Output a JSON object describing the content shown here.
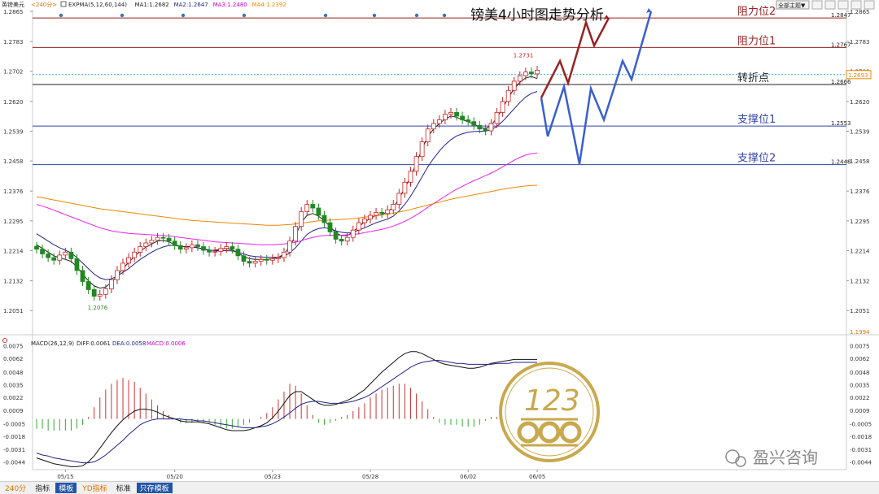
{
  "header": {
    "symbol": "英镑美元",
    "period": "<240分>",
    "indicators": [
      {
        "label": "EXPMA(5,12,60,144)",
        "color": "#222222"
      },
      {
        "label": "MA1:1.2682",
        "color": "#222222"
      },
      {
        "label": "MA2:1.2647",
        "color": "#222288"
      },
      {
        "label": "MA3:1.2480",
        "color": "#cc00cc"
      },
      {
        "label": "MA4:1.2392",
        "color": "#ee8800"
      }
    ],
    "theme_button": "全部主题▼"
  },
  "chart_title": "镑美4小时图走势分析",
  "chart_data": [
    {
      "type": "candlestick",
      "ylim": [
        1.1994,
        1.2865
      ],
      "yticks": [
        "1.2865",
        "1.2783",
        "1.2702",
        "1.2620",
        "1.2539",
        "1.2458",
        "1.2376",
        "1.2295",
        "1.2214",
        "1.2132",
        "1.2051"
      ],
      "y_min_label": "1.1994",
      "x_tick_labels": [
        "05/15",
        "05/20",
        "05/23",
        "05/28",
        "06/02",
        "06/05"
      ],
      "candles_close": [
        1.2218,
        1.2205,
        1.2195,
        1.2188,
        1.2202,
        1.221,
        1.2192,
        1.216,
        1.213,
        1.2108,
        1.209,
        1.2095,
        1.211,
        1.2135,
        1.216,
        1.218,
        1.2195,
        1.221,
        1.2225,
        1.2235,
        1.2242,
        1.225,
        1.2248,
        1.224,
        1.2228,
        1.2218,
        1.2222,
        1.223,
        1.2225,
        1.2215,
        1.221,
        1.2212,
        1.222,
        1.2225,
        1.2218,
        1.22,
        1.2185,
        1.218,
        1.2185,
        1.219,
        1.2188,
        1.2192,
        1.2195,
        1.221,
        1.224,
        1.228,
        1.232,
        1.234,
        1.233,
        1.231,
        1.229,
        1.2265,
        1.2245,
        1.224,
        1.225,
        1.227,
        1.229,
        1.23,
        1.231,
        1.2318,
        1.2315,
        1.2325,
        1.234,
        1.237,
        1.24,
        1.243,
        1.247,
        1.251,
        1.2545,
        1.256,
        1.257,
        1.2585,
        1.259,
        1.258,
        1.257,
        1.2565,
        1.2555,
        1.2545,
        1.254,
        1.256,
        1.259,
        1.262,
        1.265,
        1.2675,
        1.269,
        1.27,
        1.2695,
        1.2705
      ],
      "ema_lines": [
        {
          "name": "MA1",
          "color": "#222222",
          "values": [
            1.223,
            1.222,
            1.221,
            1.22,
            1.2195,
            1.219,
            1.2185,
            1.217,
            1.215,
            1.2132,
            1.2118,
            1.2112,
            1.2115,
            1.2128,
            1.2145,
            1.2165,
            1.2182,
            1.2198,
            1.2212,
            1.2224,
            1.2232,
            1.224,
            1.2242,
            1.2238,
            1.223,
            1.2225,
            1.2225,
            1.2225,
            1.2222,
            1.2218,
            1.2215,
            1.2215,
            1.2218,
            1.222,
            1.2216,
            1.2208,
            1.2198,
            1.2192,
            1.219,
            1.219,
            1.219,
            1.2192,
            1.2195,
            1.2205,
            1.2225,
            1.2255,
            1.229,
            1.231,
            1.2315,
            1.2308,
            1.2295,
            1.228,
            1.2262,
            1.2255,
            1.2255,
            1.2265,
            1.228,
            1.2292,
            1.2302,
            1.231,
            1.2312,
            1.232,
            1.2332,
            1.2355,
            1.2385,
            1.2415,
            1.2452,
            1.249,
            1.2525,
            1.2545,
            1.256,
            1.2572,
            1.258,
            1.2577,
            1.257,
            1.2565,
            1.2558,
            1.255,
            1.2546,
            1.2555,
            1.2575,
            1.2602,
            1.263,
            1.2655,
            1.2672,
            1.2684,
            1.2688,
            1.2682
          ]
        },
        {
          "name": "MA2",
          "color": "#222288",
          "values": [
            1.226,
            1.225,
            1.224,
            1.223,
            1.2222,
            1.2215,
            1.2208,
            1.2195,
            1.218,
            1.2165,
            1.215,
            1.214,
            1.2135,
            1.2137,
            1.2145,
            1.2155,
            1.2165,
            1.2178,
            1.219,
            1.22,
            1.221,
            1.2218,
            1.2224,
            1.2228,
            1.2228,
            1.2226,
            1.2225,
            1.2224,
            1.2222,
            1.2219,
            1.2216,
            1.2214,
            1.2214,
            1.2214,
            1.2213,
            1.221,
            1.2205,
            1.22,
            1.2198,
            1.2197,
            1.2196,
            1.2196,
            1.2196,
            1.2199,
            1.2208,
            1.2222,
            1.224,
            1.2258,
            1.2268,
            1.2274,
            1.2276,
            1.2274,
            1.2268,
            1.2264,
            1.2262,
            1.2264,
            1.227,
            1.2276,
            1.2283,
            1.229,
            1.2295,
            1.23,
            1.2308,
            1.2322,
            1.234,
            1.2362,
            1.2388,
            1.2415,
            1.2442,
            1.2465,
            1.2485,
            1.2502,
            1.2516,
            1.2526,
            1.2532,
            1.2536,
            1.2538,
            1.2539,
            1.2539,
            1.2543,
            1.2552,
            1.2566,
            1.2583,
            1.26,
            1.2617,
            1.2632,
            1.2642,
            1.2647
          ]
        },
        {
          "name": "MA3",
          "color": "#ee22ee",
          "values": [
            1.234,
            1.2335,
            1.233,
            1.2324,
            1.2318,
            1.2312,
            1.2306,
            1.23,
            1.2294,
            1.2288,
            1.2282,
            1.2276,
            1.2272,
            1.2268,
            1.2265,
            1.2263,
            1.2261,
            1.226,
            1.2259,
            1.2258,
            1.2257,
            1.2256,
            1.2255,
            1.2254,
            1.2252,
            1.225,
            1.2248,
            1.2246,
            1.2244,
            1.2242,
            1.224,
            1.2238,
            1.2237,
            1.2236,
            1.2235,
            1.2234,
            1.2233,
            1.2232,
            1.2231,
            1.223,
            1.223,
            1.223,
            1.2231,
            1.2232,
            1.2234,
            1.2237,
            1.2241,
            1.2246,
            1.225,
            1.2253,
            1.2255,
            1.2256,
            1.2256,
            1.2256,
            1.2257,
            1.2258,
            1.226,
            1.2263,
            1.2266,
            1.2269,
            1.2272,
            1.2276,
            1.2281,
            1.2287,
            1.2294,
            1.2302,
            1.2311,
            1.2321,
            1.2332,
            1.2342,
            1.2352,
            1.2362,
            1.2372,
            1.2381,
            1.2389,
            1.2397,
            1.2404,
            1.2411,
            1.2418,
            1.2425,
            1.2433,
            1.2442,
            1.2451,
            1.246,
            1.2468,
            1.2474,
            1.2478,
            1.248
          ]
        },
        {
          "name": "MA4",
          "color": "#ee8800",
          "values": [
            1.236,
            1.2358,
            1.2355,
            1.2352,
            1.2349,
            1.2346,
            1.2343,
            1.234,
            1.2337,
            1.2334,
            1.2331,
            1.2328,
            1.2326,
            1.2324,
            1.2322,
            1.232,
            1.2318,
            1.2316,
            1.2314,
            1.2312,
            1.231,
            1.2308,
            1.2306,
            1.2304,
            1.2302,
            1.23,
            1.2298,
            1.2296,
            1.2295,
            1.2294,
            1.2293,
            1.2292,
            1.2291,
            1.229,
            1.2289,
            1.2288,
            1.2287,
            1.2286,
            1.2285,
            1.2284,
            1.2283,
            1.2283,
            1.2283,
            1.2284,
            1.2285,
            1.2287,
            1.2289,
            1.2291,
            1.2293,
            1.2295,
            1.2296,
            1.2297,
            1.2298,
            1.2299,
            1.23,
            1.2301,
            1.2303,
            1.2305,
            1.2307,
            1.2309,
            1.2311,
            1.2313,
            1.2316,
            1.2319,
            1.2322,
            1.2326,
            1.233,
            1.2334,
            1.2338,
            1.2342,
            1.2346,
            1.235,
            1.2354,
            1.2357,
            1.236,
            1.2363,
            1.2366,
            1.2369,
            1.2372,
            1.2375,
            1.2378,
            1.2381,
            1.2384,
            1.2386,
            1.2388,
            1.239,
            1.2391,
            1.2392
          ]
        }
      ],
      "annotations": [
        {
          "label": "1.2731",
          "price": 1.2731,
          "bar": 84
        },
        {
          "label": "1.2076",
          "price": 1.2076,
          "bar": 10
        }
      ],
      "levels": [
        {
          "name": "阻力位2",
          "price": 1.2847,
          "label": "1.2847",
          "color": "#992222"
        },
        {
          "name": "阻力位1",
          "price": 1.2767,
          "label": "1.2767",
          "color": "#992222"
        },
        {
          "name": "转折点",
          "price": 1.2666,
          "label": "1.2666",
          "color": "#222222"
        },
        {
          "name": "支撑位1",
          "price": 1.2553,
          "label": "1.2553",
          "color": "#3344aa"
        },
        {
          "name": "支撑位2",
          "price": 1.2448,
          "label": "1.2448",
          "color": "#3344aa"
        }
      ],
      "current_price": {
        "label": "1.2693",
        "price": 1.2693,
        "color": "#ee8800"
      },
      "bullish_path": [
        1.263,
        1.273,
        1.267,
        1.2835,
        1.2772,
        1.2847
      ],
      "bearish_path": [
        1.263,
        1.2525,
        1.266,
        1.245,
        1.2655,
        1.257,
        1.273,
        1.268,
        1.2865
      ]
    },
    {
      "type": "macd",
      "header": "MACD(26,12,9)",
      "diff_label": "DIFF:0.0061",
      "dea_label": "DEA:0.0058",
      "macd_label": "MACD:0.0006",
      "ylim": [
        -0.0052,
        0.0078
      ],
      "yticks": [
        "0.0075",
        "0.0062",
        "0.0048",
        "0.0035",
        "0.0022",
        "0.0009",
        "-0.0005",
        "-0.0018",
        "-0.0031",
        "-0.0044"
      ],
      "diff": [
        -0.004,
        -0.0042,
        -0.0044,
        -0.0046,
        -0.0047,
        -0.0048,
        -0.0049,
        -0.0049,
        -0.0048,
        -0.0044,
        -0.0038,
        -0.003,
        -0.0022,
        -0.0014,
        -0.0007,
        -0.0001,
        0.0004,
        0.0008,
        0.001,
        0.001,
        0.0009,
        0.0007,
        0.0004,
        0.0002,
        0.0,
        -0.0002,
        -0.0003,
        -0.0003,
        -0.0003,
        -0.0004,
        -0.0005,
        -0.0007,
        -0.0009,
        -0.0011,
        -0.0012,
        -0.0012,
        -0.0012,
        -0.0011,
        -0.0009,
        -0.0007,
        -0.0004,
        0.0001,
        0.0008,
        0.0016,
        0.0024,
        0.0028,
        0.0028,
        0.0024,
        0.002,
        0.0016,
        0.0014,
        0.0014,
        0.0015,
        0.0017,
        0.0019,
        0.0022,
        0.0026,
        0.003,
        0.0036,
        0.0042,
        0.0048,
        0.0053,
        0.0058,
        0.0063,
        0.0067,
        0.0069,
        0.0069,
        0.0067,
        0.0064,
        0.0061,
        0.0058,
        0.0056,
        0.0055,
        0.0054,
        0.0053,
        0.0052,
        0.0052,
        0.0053,
        0.0055,
        0.0057,
        0.0058,
        0.0059,
        0.006,
        0.0061,
        0.0061,
        0.0061,
        0.0061,
        0.0061
      ],
      "dea": [
        -0.0035,
        -0.0037,
        -0.0038,
        -0.004,
        -0.0041,
        -0.0042,
        -0.0043,
        -0.0044,
        -0.0045,
        -0.0045,
        -0.0044,
        -0.0041,
        -0.0037,
        -0.0032,
        -0.0027,
        -0.0022,
        -0.0016,
        -0.0011,
        -0.0006,
        -0.0003,
        -0.0001,
        0.0,
        0.0,
        0.0,
        0.0,
        0.0,
        -0.0001,
        -0.0001,
        -0.0002,
        -0.0002,
        -0.0003,
        -0.0004,
        -0.0005,
        -0.0006,
        -0.0007,
        -0.0008,
        -0.0009,
        -0.0009,
        -0.0009,
        -0.0008,
        -0.0007,
        -0.0005,
        -0.0002,
        0.0002,
        0.0006,
        0.0011,
        0.0015,
        0.0017,
        0.0018,
        0.0018,
        0.0017,
        0.0016,
        0.0016,
        0.0016,
        0.0017,
        0.0018,
        0.002,
        0.0022,
        0.0025,
        0.0029,
        0.0033,
        0.0037,
        0.0041,
        0.0045,
        0.0049,
        0.0053,
        0.0056,
        0.0058,
        0.0059,
        0.006,
        0.006,
        0.0059,
        0.0058,
        0.0057,
        0.0057,
        0.0056,
        0.0056,
        0.0056,
        0.0056,
        0.0056,
        0.0057,
        0.0057,
        0.0057,
        0.0058,
        0.0058,
        0.0058,
        0.0058,
        0.0058
      ],
      "x_tick_labels": [
        "05/15",
        "05/20",
        "05/23",
        "05/28",
        "06/02",
        "06/05"
      ]
    }
  ],
  "watermark": {
    "label": "盈兴咨询"
  },
  "bottom_tabs": [
    "240分",
    "指标",
    "模板",
    "YD指标",
    "标准",
    "只存模板"
  ]
}
